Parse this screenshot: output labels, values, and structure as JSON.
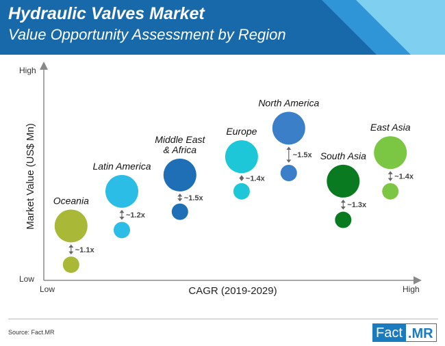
{
  "header": {
    "title": "Hydraulic Valves Market",
    "subtitle": "Value Opportunity Assessment by Region"
  },
  "colors": {
    "banner_dark": "#1769aa",
    "banner_mid": "#2f95d6",
    "banner_light": "#7fcff0"
  },
  "footer": {
    "source": "Source: Fact.MR",
    "logo_left": "Fact",
    "logo_right": ".MR"
  },
  "chart_data": {
    "type": "scatter",
    "title": "",
    "xlabel": "CAGR (2019-2029)",
    "ylabel": "Market Value (US$ Mn)",
    "x_tick_labels": {
      "low": "Low",
      "high": "High"
    },
    "y_tick_labels": {
      "low": "Low",
      "high": "High"
    },
    "xlim": [
      0,
      100
    ],
    "ylim": [
      0,
      100
    ],
    "regions": [
      {
        "name": "Oceania",
        "color": "#a9b836",
        "x": 6,
        "y_large": 24,
        "y_small": 5,
        "multiplier": "~1.1x"
      },
      {
        "name": "Latin America",
        "color": "#2bbde6",
        "x": 20,
        "y_large": 41,
        "y_small": 22,
        "multiplier": "~1.2x"
      },
      {
        "name": "Middle East & Africa",
        "color": "#1f6fb6",
        "x": 36,
        "y_large": 49,
        "y_small": 31,
        "multiplier": "~1.5x"
      },
      {
        "name": "Europe",
        "color": "#1dc7d8",
        "x": 53,
        "y_large": 58,
        "y_small": 41,
        "multiplier": "~1.4x"
      },
      {
        "name": "North America",
        "color": "#3a7fc8",
        "x": 66,
        "y_large": 72,
        "y_small": 50,
        "multiplier": "~1.5x"
      },
      {
        "name": "South Asia",
        "color": "#0a7a20",
        "x": 81,
        "y_large": 46,
        "y_small": 27,
        "multiplier": "~1.3x"
      },
      {
        "name": "East Asia",
        "color": "#7bc642",
        "x": 94,
        "y_large": 60,
        "y_small": 41,
        "multiplier": "~1.4x"
      }
    ]
  }
}
